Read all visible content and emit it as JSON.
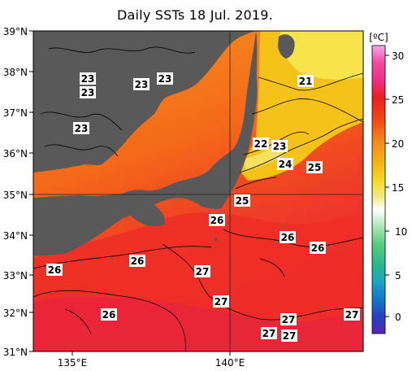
{
  "title": "Daily SSTs 18 Jul. 2019.",
  "axes": {
    "lat_labels": [
      "39°N",
      "38°N",
      "37°N",
      "36°N",
      "35°N",
      "34°N",
      "33°N",
      "32°N",
      "31°N"
    ],
    "lon_labels": [
      "135°E",
      "140°E"
    ]
  },
  "colorbar": {
    "unit": "[ºC]",
    "tick_labels": [
      "30",
      "25",
      "20",
      "15",
      "10",
      "5",
      "0"
    ],
    "colors": [
      "#f7a8ee",
      "#f0308a",
      "#ee1e1e",
      "#f24a14",
      "#f6861a",
      "#f5b114",
      "#f5d923",
      "#f4ee8e",
      "#ffffff",
      "#b8ecc0",
      "#54cf79",
      "#29b98a",
      "#18a6c2",
      "#1479c8",
      "#2442c0",
      "#5525ba"
    ]
  },
  "land_color": "#595959",
  "isotherm_labels": [
    {
      "text": "23"
    },
    {
      "text": "23"
    },
    {
      "text": "23"
    },
    {
      "text": "23"
    },
    {
      "text": "23"
    },
    {
      "text": "21"
    },
    {
      "text": "22"
    },
    {
      "text": "23"
    },
    {
      "text": "24"
    },
    {
      "text": "25"
    },
    {
      "text": "25"
    },
    {
      "text": "26"
    },
    {
      "text": "26"
    },
    {
      "text": "26"
    },
    {
      "text": "26"
    },
    {
      "text": "26"
    },
    {
      "text": "27"
    },
    {
      "text": "27"
    },
    {
      "text": "26"
    },
    {
      "text": "27"
    },
    {
      "text": "27"
    },
    {
      "text": "27"
    },
    {
      "text": "27"
    }
  ]
}
